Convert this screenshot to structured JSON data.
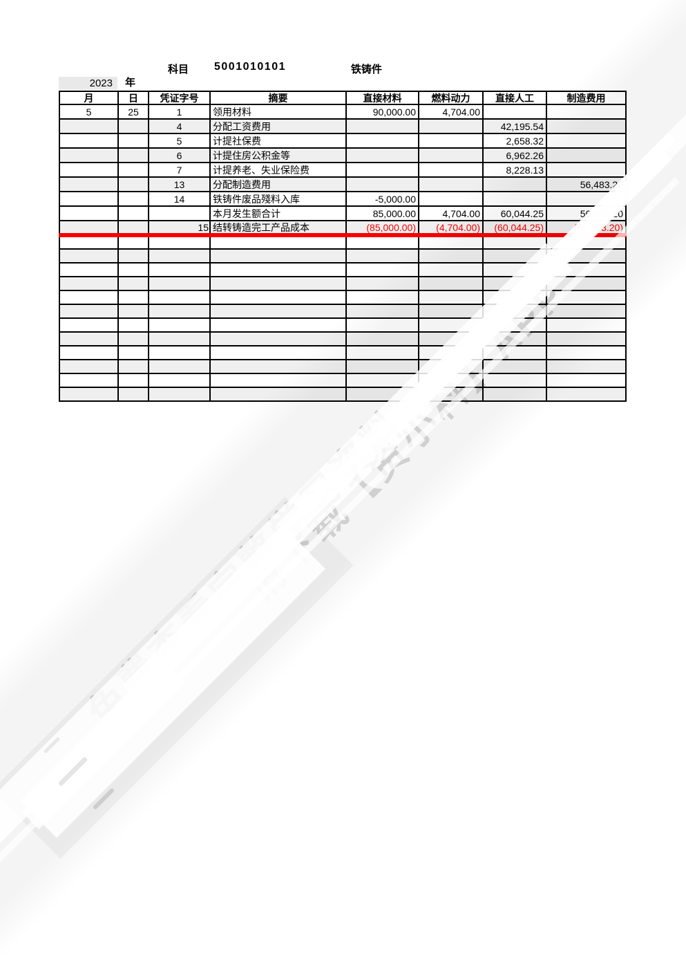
{
  "header": {
    "subject_label": "科目",
    "subject_code": "5001010101",
    "subject_name": "铁铸件",
    "year": "2023",
    "year_suffix": "年"
  },
  "table": {
    "columns": [
      {
        "key": "month",
        "label": "月"
      },
      {
        "key": "day",
        "label": "日"
      },
      {
        "key": "voucher",
        "label": "凭证字号"
      },
      {
        "key": "summary",
        "label": "摘要"
      },
      {
        "key": "material",
        "label": "直接材料"
      },
      {
        "key": "fuel",
        "label": "燃料动力"
      },
      {
        "key": "labor",
        "label": "直接人工"
      },
      {
        "key": "overhead",
        "label": "制造费用"
      }
    ],
    "rows": [
      {
        "month": "5",
        "day": "25",
        "voucher": "1",
        "summary": "领用材料",
        "material": "90,000.00",
        "fuel": "4,704.00",
        "labor": "",
        "overhead": "",
        "band": "white"
      },
      {
        "month": "",
        "day": "",
        "voucher": "4",
        "summary": "分配工资费用",
        "material": "",
        "fuel": "",
        "labor": "42,195.54",
        "overhead": "",
        "band": "gray"
      },
      {
        "month": "",
        "day": "",
        "voucher": "5",
        "summary": "计提社保费",
        "material": "",
        "fuel": "",
        "labor": "2,658.32",
        "overhead": "",
        "band": "white"
      },
      {
        "month": "",
        "day": "",
        "voucher": "6",
        "summary": "计提住房公积金等",
        "material": "",
        "fuel": "",
        "labor": "6,962.26",
        "overhead": "",
        "band": "gray"
      },
      {
        "month": "",
        "day": "",
        "voucher": "7",
        "summary": "计提养老、失业保险费",
        "material": "",
        "fuel": "",
        "labor": "8,228.13",
        "overhead": "",
        "band": "white"
      },
      {
        "month": "",
        "day": "",
        "voucher": "13",
        "summary": "分配制造费用",
        "material": "",
        "fuel": "",
        "labor": "",
        "overhead": "56,483.20",
        "band": "gray"
      },
      {
        "month": "",
        "day": "",
        "voucher": "14",
        "summary": "铁铸件废品殘料入库",
        "material": "-5,000.00",
        "fuel": "",
        "labor": "",
        "overhead": "",
        "band": "white"
      },
      {
        "month": "",
        "day": "",
        "voucher": "",
        "summary": "本月发生额合计",
        "material": "85,000.00",
        "fuel": "4,704.00",
        "labor": "60,044.25",
        "overhead": "56,483.20",
        "band": "white"
      },
      {
        "month": "",
        "day": "",
        "voucher": "15",
        "summary": "结转铸造完工产品成本",
        "material": "(85,000.00)",
        "fuel": "(4,704.00)",
        "labor": "(60,044.25)",
        "overhead": "(56,483.20)",
        "band": "gray",
        "values_red": true,
        "voucher_align": "right",
        "red_line_below": true
      }
    ],
    "empty_row_count": 12
  },
  "watermark": {
    "line1": "免费查看完整学习资料",
    "line2": "请下载【资小料】APP"
  },
  "colors": {
    "accent_red": "#f60000",
    "band_gray": "#efefef"
  }
}
